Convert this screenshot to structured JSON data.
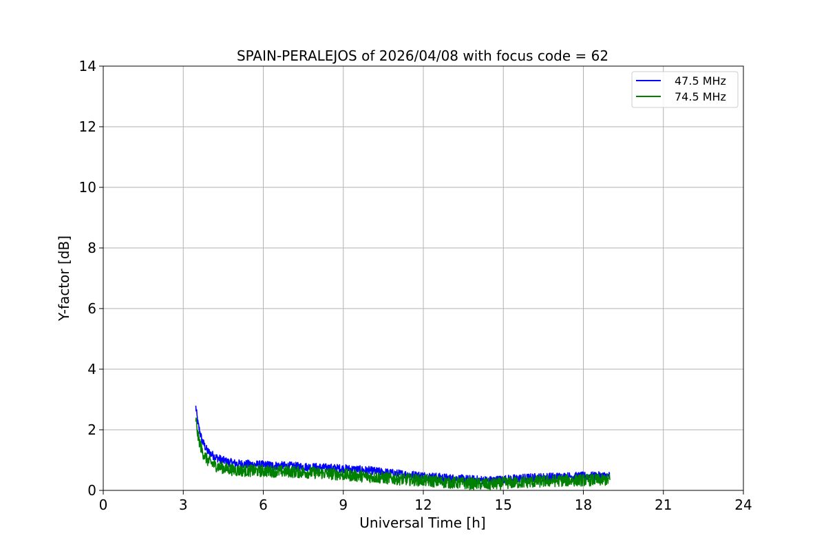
{
  "chart_data": {
    "type": "line",
    "title": "SPAIN-PERALEJOS of 2026/04/08 with focus code = 62",
    "xlabel": "Universal Time [h]",
    "ylabel": "Y-factor [dB]",
    "xlim": [
      0,
      24
    ],
    "ylim": [
      0,
      14
    ],
    "xticks": [
      0,
      3,
      6,
      9,
      12,
      15,
      18,
      21,
      24
    ],
    "yticks": [
      0,
      2,
      4,
      6,
      8,
      10,
      12,
      14
    ],
    "grid": true,
    "legend_position": "top-right",
    "series": [
      {
        "name": "47.5 MHz",
        "color": "#0000ff",
        "x": [
          3.47,
          3.55,
          3.7,
          3.9,
          4.2,
          4.6,
          5.0,
          6.0,
          7.0,
          8.0,
          9.0,
          10.0,
          11.0,
          12.0,
          13.0,
          14.0,
          14.5,
          15.0,
          16.0,
          17.0,
          18.0,
          19.0
        ],
        "y": [
          2.75,
          2.2,
          1.65,
          1.3,
          1.1,
          0.95,
          0.88,
          0.84,
          0.8,
          0.76,
          0.72,
          0.65,
          0.55,
          0.48,
          0.4,
          0.35,
          0.33,
          0.36,
          0.42,
          0.45,
          0.47,
          0.48
        ],
        "band": 0.14
      },
      {
        "name": "74.5 MHz",
        "color": "#008000",
        "x": [
          3.47,
          3.55,
          3.7,
          3.9,
          4.2,
          4.6,
          5.0,
          6.0,
          7.0,
          8.0,
          9.0,
          10.0,
          11.0,
          12.0,
          13.0,
          14.0,
          14.5,
          15.0,
          16.0,
          17.0,
          18.0,
          19.0
        ],
        "y": [
          2.35,
          1.8,
          1.3,
          1.0,
          0.82,
          0.72,
          0.66,
          0.64,
          0.62,
          0.58,
          0.52,
          0.45,
          0.38,
          0.33,
          0.26,
          0.22,
          0.2,
          0.24,
          0.28,
          0.32,
          0.34,
          0.35
        ],
        "band": 0.2
      }
    ]
  }
}
